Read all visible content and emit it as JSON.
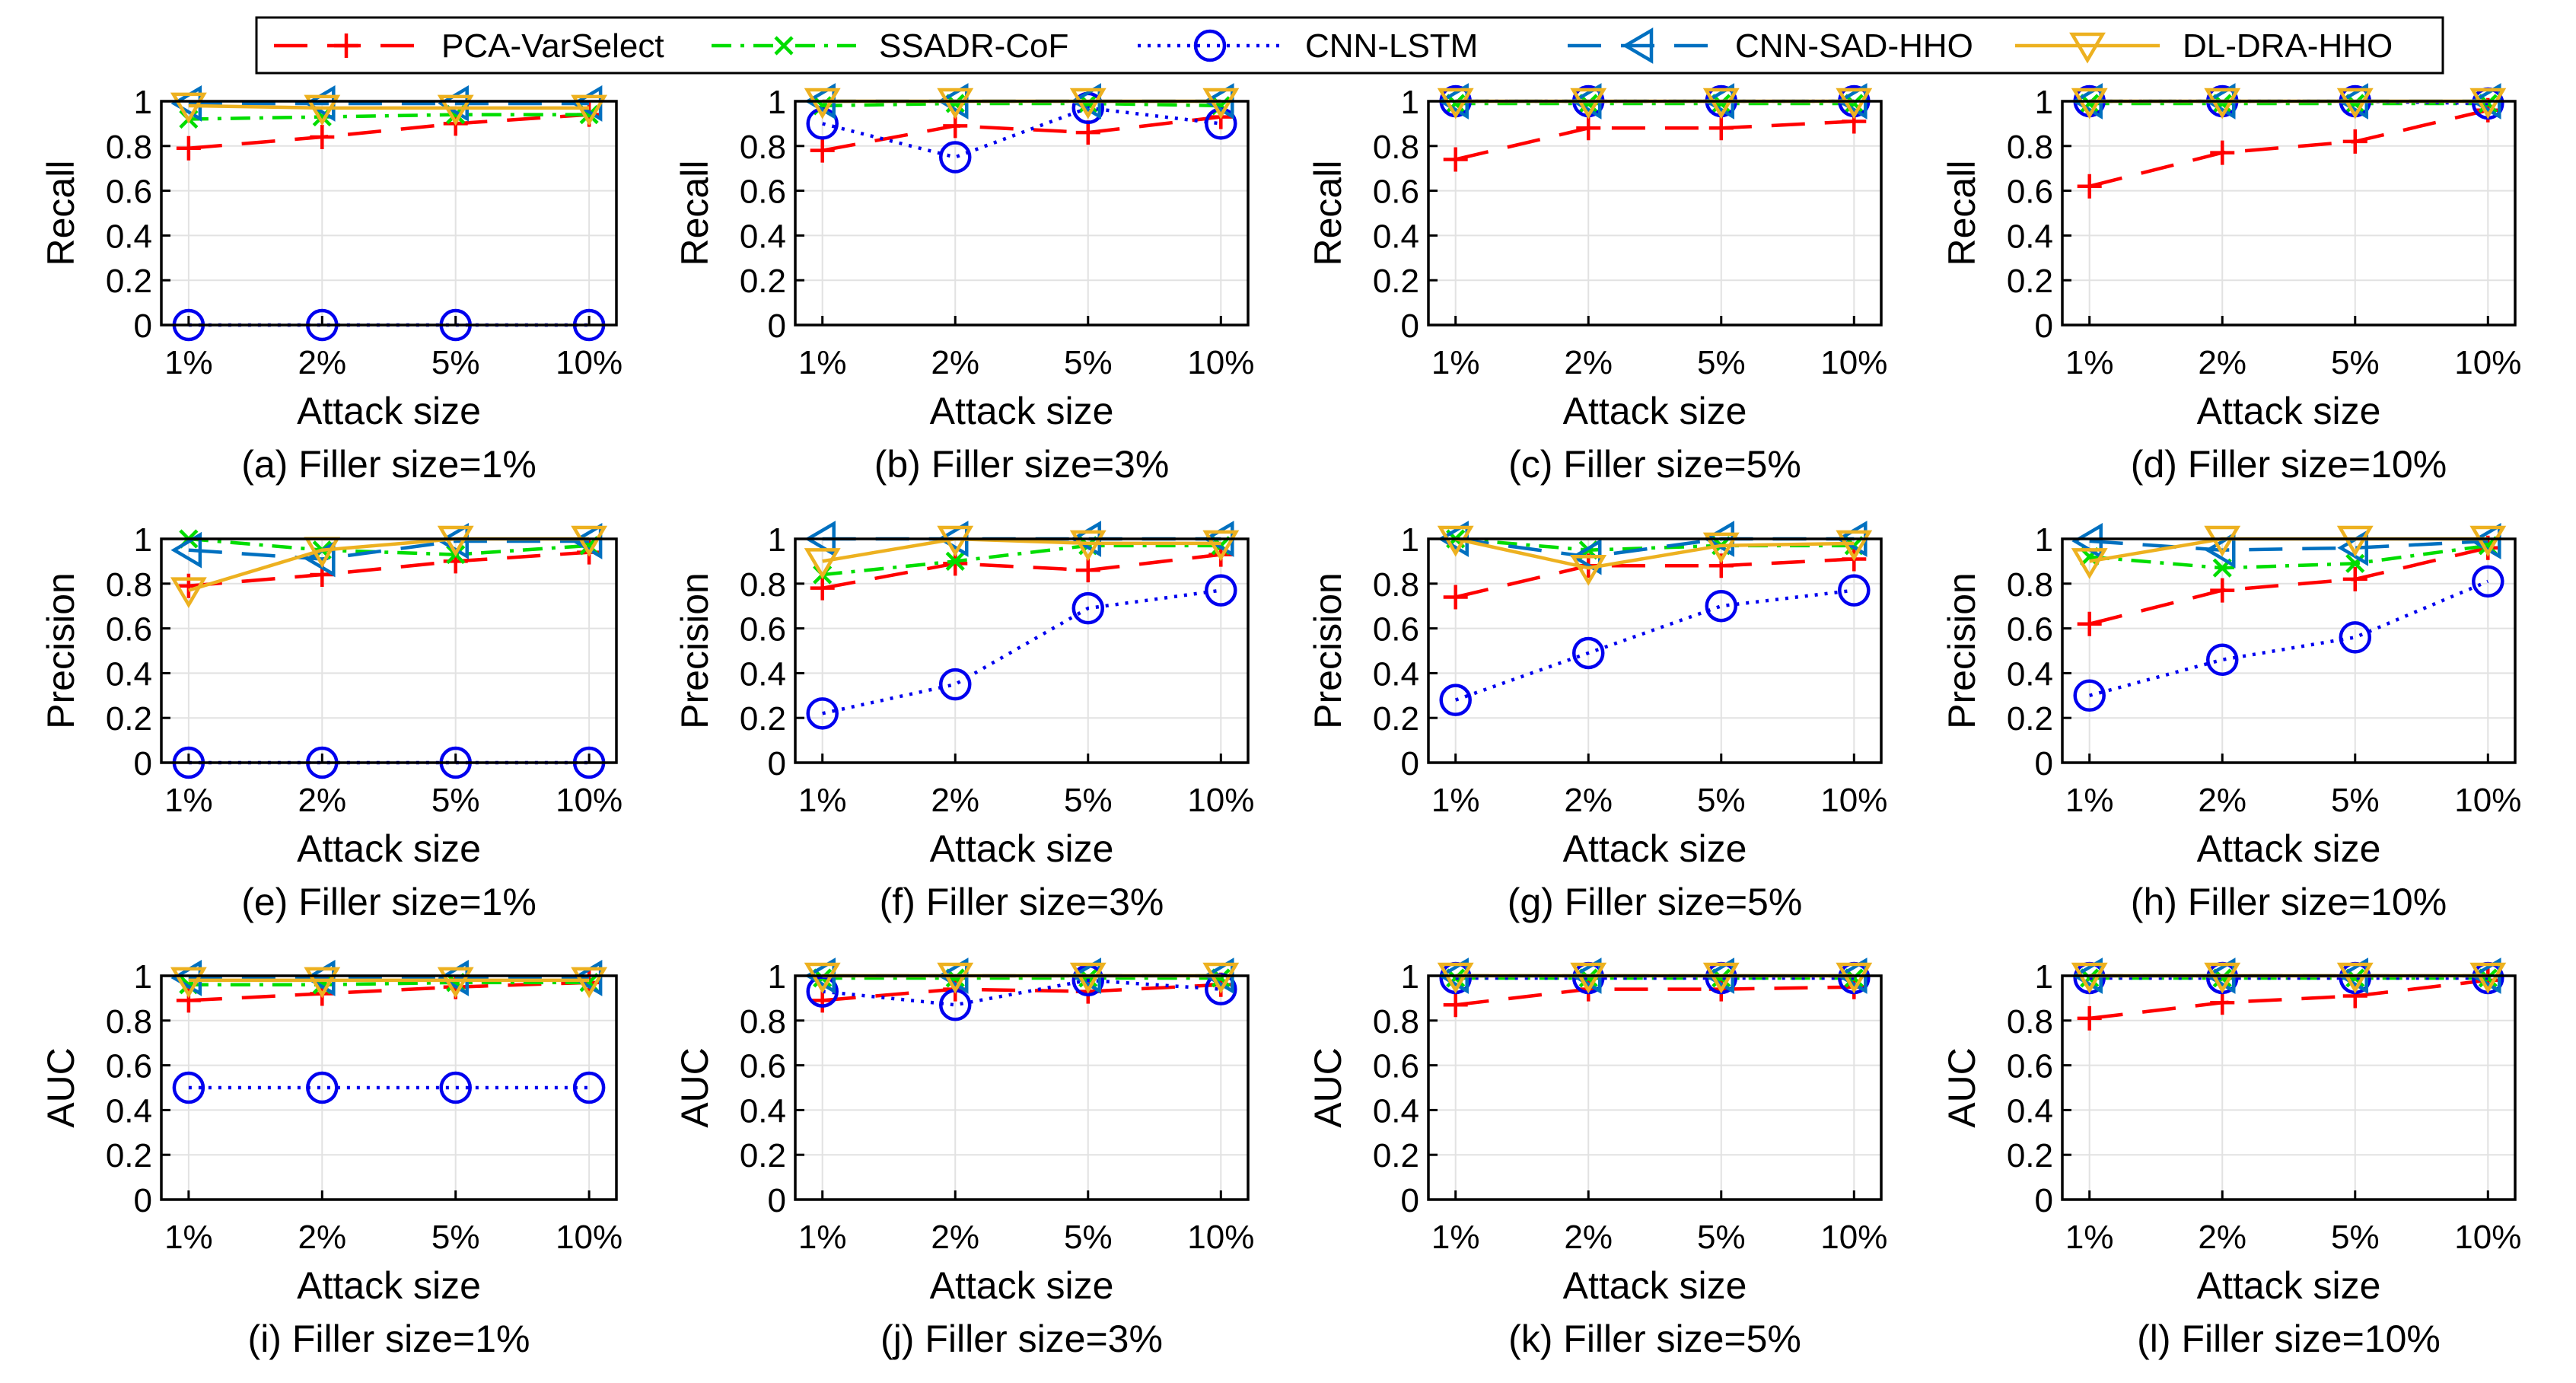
{
  "figure": {
    "legend": [
      "PCA-VarSelect",
      "SSADR-CoF",
      "CNN-LSTM",
      "CNN-SAD-HHO",
      "DL-DRA-HHO"
    ]
  },
  "series_styles": [
    {
      "name": "PCA-VarSelect",
      "color": "#ff0000",
      "marker": "plus",
      "dash": "44,26"
    },
    {
      "name": "SSADR-CoF",
      "color": "#00dd00",
      "marker": "x",
      "dash": "26,12,5,12"
    },
    {
      "name": "CNN-LSTM",
      "color": "#0000ee",
      "marker": "circle",
      "dash": "4,9"
    },
    {
      "name": "CNN-SAD-HHO",
      "color": "#0070c0",
      "marker": "triangle-left",
      "dash": "44,26"
    },
    {
      "name": "DL-DRA-HHO",
      "color": "#edb120",
      "marker": "triangle-down",
      "dash": ""
    }
  ],
  "chart_data": [
    {
      "type": "line",
      "panel": "(a)",
      "caption": "(a) Filler size=1%",
      "ylabel": "Recall",
      "xlabel": "Attack size",
      "categories": [
        "1%",
        "2%",
        "5%",
        "10%"
      ],
      "ylim": [
        0,
        1
      ],
      "yticks": [
        "0",
        "0.2",
        "0.4",
        "0.6",
        "0.8",
        "1"
      ],
      "series": [
        {
          "name": "PCA-VarSelect",
          "values": [
            0.79,
            0.84,
            0.9,
            0.94
          ]
        },
        {
          "name": "SSADR-CoF",
          "values": [
            0.92,
            0.93,
            0.94,
            0.94
          ]
        },
        {
          "name": "CNN-LSTM",
          "values": [
            0.0,
            0.0,
            0.0,
            0.0
          ]
        },
        {
          "name": "CNN-SAD-HHO",
          "values": [
            0.99,
            0.99,
            0.99,
            0.99
          ]
        },
        {
          "name": "DL-DRA-HHO",
          "values": [
            0.98,
            0.97,
            0.97,
            0.97
          ]
        }
      ]
    },
    {
      "type": "line",
      "panel": "(b)",
      "caption": "(b) Filler size=3%",
      "ylabel": "Recall",
      "xlabel": "Attack size",
      "categories": [
        "1%",
        "2%",
        "5%",
        "10%"
      ],
      "ylim": [
        0,
        1
      ],
      "yticks": [
        "0",
        "0.2",
        "0.4",
        "0.6",
        "0.8",
        "1"
      ],
      "series": [
        {
          "name": "PCA-VarSelect",
          "values": [
            0.78,
            0.89,
            0.86,
            0.93
          ]
        },
        {
          "name": "SSADR-CoF",
          "values": [
            0.98,
            0.99,
            0.99,
            0.98
          ]
        },
        {
          "name": "CNN-LSTM",
          "values": [
            0.9,
            0.75,
            0.97,
            0.9
          ]
        },
        {
          "name": "CNN-SAD-HHO",
          "values": [
            1.0,
            1.0,
            1.0,
            1.0
          ]
        },
        {
          "name": "DL-DRA-HHO",
          "values": [
            1.0,
            1.0,
            1.0,
            1.0
          ]
        }
      ]
    },
    {
      "type": "line",
      "panel": "(c)",
      "caption": "(c) Filler size=5%",
      "ylabel": "Recall",
      "xlabel": "Attack size",
      "categories": [
        "1%",
        "2%",
        "5%",
        "10%"
      ],
      "ylim": [
        0,
        1
      ],
      "yticks": [
        "0",
        "0.2",
        "0.4",
        "0.6",
        "0.8",
        "1"
      ],
      "series": [
        {
          "name": "PCA-VarSelect",
          "values": [
            0.74,
            0.88,
            0.88,
            0.91
          ]
        },
        {
          "name": "SSADR-CoF",
          "values": [
            0.99,
            0.99,
            0.99,
            0.99
          ]
        },
        {
          "name": "CNN-LSTM",
          "values": [
            1.0,
            1.0,
            1.0,
            1.0
          ]
        },
        {
          "name": "CNN-SAD-HHO",
          "values": [
            1.0,
            1.0,
            1.0,
            1.0
          ]
        },
        {
          "name": "DL-DRA-HHO",
          "values": [
            1.0,
            1.0,
            1.0,
            1.0
          ]
        }
      ]
    },
    {
      "type": "line",
      "panel": "(d)",
      "caption": "(d) Filler size=10%",
      "ylabel": "Recall",
      "xlabel": "Attack size",
      "categories": [
        "1%",
        "2%",
        "5%",
        "10%"
      ],
      "ylim": [
        0,
        1
      ],
      "yticks": [
        "0",
        "0.2",
        "0.4",
        "0.6",
        "0.8",
        "1"
      ],
      "series": [
        {
          "name": "PCA-VarSelect",
          "values": [
            0.62,
            0.77,
            0.82,
            0.96
          ]
        },
        {
          "name": "SSADR-CoF",
          "values": [
            0.99,
            0.99,
            0.99,
            0.99
          ]
        },
        {
          "name": "CNN-LSTM",
          "values": [
            1.0,
            1.0,
            1.0,
            0.99
          ]
        },
        {
          "name": "CNN-SAD-HHO",
          "values": [
            1.0,
            1.0,
            1.0,
            1.0
          ]
        },
        {
          "name": "DL-DRA-HHO",
          "values": [
            1.0,
            1.0,
            1.0,
            1.0
          ]
        }
      ]
    },
    {
      "type": "line",
      "panel": "(e)",
      "caption": "(e) Filler size=1%",
      "ylabel": "Precision",
      "xlabel": "Attack size",
      "categories": [
        "1%",
        "2%",
        "5%",
        "10%"
      ],
      "ylim": [
        0,
        1
      ],
      "yticks": [
        "0",
        "0.2",
        "0.4",
        "0.6",
        "0.8",
        "1"
      ],
      "series": [
        {
          "name": "PCA-VarSelect",
          "values": [
            0.79,
            0.84,
            0.9,
            0.94
          ]
        },
        {
          "name": "SSADR-CoF",
          "values": [
            1.0,
            0.95,
            0.93,
            0.97
          ]
        },
        {
          "name": "CNN-LSTM",
          "values": [
            0.0,
            0.0,
            0.0,
            0.0
          ]
        },
        {
          "name": "CNN-SAD-HHO",
          "values": [
            0.95,
            0.91,
            0.99,
            0.99
          ]
        },
        {
          "name": "DL-DRA-HHO",
          "values": [
            0.77,
            0.95,
            1.0,
            1.0
          ]
        }
      ]
    },
    {
      "type": "line",
      "panel": "(f)",
      "caption": "(f) Filler size=3%",
      "ylabel": "Precision",
      "xlabel": "Attack size",
      "categories": [
        "1%",
        "2%",
        "5%",
        "10%"
      ],
      "ylim": [
        0,
        1
      ],
      "yticks": [
        "0",
        "0.2",
        "0.4",
        "0.6",
        "0.8",
        "1"
      ],
      "series": [
        {
          "name": "PCA-VarSelect",
          "values": [
            0.78,
            0.89,
            0.86,
            0.93
          ]
        },
        {
          "name": "SSADR-CoF",
          "values": [
            0.84,
            0.9,
            0.97,
            0.97
          ]
        },
        {
          "name": "CNN-LSTM",
          "values": [
            0.22,
            0.35,
            0.69,
            0.77
          ]
        },
        {
          "name": "CNN-SAD-HHO",
          "values": [
            1.0,
            1.0,
            1.0,
            1.0
          ]
        },
        {
          "name": "DL-DRA-HHO",
          "values": [
            0.9,
            1.0,
            0.98,
            0.98
          ]
        }
      ]
    },
    {
      "type": "line",
      "panel": "(g)",
      "caption": "(g) Filler size=5%",
      "ylabel": "Precision",
      "xlabel": "Attack size",
      "categories": [
        "1%",
        "2%",
        "5%",
        "10%"
      ],
      "ylim": [
        0,
        1
      ],
      "yticks": [
        "0",
        "0.2",
        "0.4",
        "0.6",
        "0.8",
        "1"
      ],
      "series": [
        {
          "name": "PCA-VarSelect",
          "values": [
            0.74,
            0.88,
            0.88,
            0.91
          ]
        },
        {
          "name": "SSADR-CoF",
          "values": [
            1.0,
            0.95,
            0.97,
            0.97
          ]
        },
        {
          "name": "CNN-LSTM",
          "values": [
            0.28,
            0.49,
            0.7,
            0.77
          ]
        },
        {
          "name": "CNN-SAD-HHO",
          "values": [
            1.0,
            0.92,
            1.0,
            1.0
          ]
        },
        {
          "name": "DL-DRA-HHO",
          "values": [
            1.0,
            0.87,
            0.97,
            0.98
          ]
        }
      ]
    },
    {
      "type": "line",
      "panel": "(h)",
      "caption": "(h) Filler size=10%",
      "ylabel": "Precision",
      "xlabel": "Attack size",
      "categories": [
        "1%",
        "2%",
        "5%",
        "10%"
      ],
      "ylim": [
        0,
        1
      ],
      "yticks": [
        "0",
        "0.2",
        "0.4",
        "0.6",
        "0.8",
        "1"
      ],
      "series": [
        {
          "name": "PCA-VarSelect",
          "values": [
            0.62,
            0.77,
            0.82,
            0.96
          ]
        },
        {
          "name": "SSADR-CoF",
          "values": [
            0.92,
            0.87,
            0.89,
            0.97
          ]
        },
        {
          "name": "CNN-LSTM",
          "values": [
            0.3,
            0.46,
            0.56,
            0.81
          ]
        },
        {
          "name": "CNN-SAD-HHO",
          "values": [
            0.99,
            0.95,
            0.96,
            0.99
          ]
        },
        {
          "name": "DL-DRA-HHO",
          "values": [
            0.9,
            1.0,
            1.0,
            1.0
          ]
        }
      ]
    },
    {
      "type": "line",
      "panel": "(i)",
      "caption": "(i) Filler size=1%",
      "ylabel": "AUC",
      "xlabel": "Attack size",
      "categories": [
        "1%",
        "2%",
        "5%",
        "10%"
      ],
      "ylim": [
        0,
        1
      ],
      "yticks": [
        "0",
        "0.2",
        "0.4",
        "0.6",
        "0.8",
        "1"
      ],
      "series": [
        {
          "name": "PCA-VarSelect",
          "values": [
            0.89,
            0.92,
            0.95,
            0.97
          ]
        },
        {
          "name": "SSADR-CoF",
          "values": [
            0.96,
            0.96,
            0.97,
            0.97
          ]
        },
        {
          "name": "CNN-LSTM",
          "values": [
            0.5,
            0.5,
            0.5,
            0.5
          ]
        },
        {
          "name": "CNN-SAD-HHO",
          "values": [
            0.99,
            0.99,
            0.99,
            0.99
          ]
        },
        {
          "name": "DL-DRA-HHO",
          "values": [
            0.98,
            0.98,
            0.98,
            0.98
          ]
        }
      ]
    },
    {
      "type": "line",
      "panel": "(j)",
      "caption": "(j) Filler size=3%",
      "ylabel": "AUC",
      "xlabel": "Attack size",
      "categories": [
        "1%",
        "2%",
        "5%",
        "10%"
      ],
      "ylim": [
        0,
        1
      ],
      "yticks": [
        "0",
        "0.2",
        "0.4",
        "0.6",
        "0.8",
        "1"
      ],
      "series": [
        {
          "name": "PCA-VarSelect",
          "values": [
            0.89,
            0.94,
            0.93,
            0.96
          ]
        },
        {
          "name": "SSADR-CoF",
          "values": [
            0.99,
            0.99,
            0.99,
            0.99
          ]
        },
        {
          "name": "CNN-LSTM",
          "values": [
            0.93,
            0.87,
            0.98,
            0.94
          ]
        },
        {
          "name": "CNN-SAD-HHO",
          "values": [
            1.0,
            1.0,
            1.0,
            1.0
          ]
        },
        {
          "name": "DL-DRA-HHO",
          "values": [
            1.0,
            1.0,
            1.0,
            1.0
          ]
        }
      ]
    },
    {
      "type": "line",
      "panel": "(k)",
      "caption": "(k) Filler size=5%",
      "ylabel": "AUC",
      "xlabel": "Attack size",
      "categories": [
        "1%",
        "2%",
        "5%",
        "10%"
      ],
      "ylim": [
        0,
        1
      ],
      "yticks": [
        "0",
        "0.2",
        "0.4",
        "0.6",
        "0.8",
        "1"
      ],
      "series": [
        {
          "name": "PCA-VarSelect",
          "values": [
            0.87,
            0.94,
            0.94,
            0.95
          ]
        },
        {
          "name": "SSADR-CoF",
          "values": [
            0.99,
            0.99,
            0.99,
            0.99
          ]
        },
        {
          "name": "CNN-LSTM",
          "values": [
            0.99,
            0.99,
            0.99,
            0.99
          ]
        },
        {
          "name": "CNN-SAD-HHO",
          "values": [
            1.0,
            1.0,
            1.0,
            1.0
          ]
        },
        {
          "name": "DL-DRA-HHO",
          "values": [
            1.0,
            1.0,
            1.0,
            1.0
          ]
        }
      ]
    },
    {
      "type": "line",
      "panel": "(l)",
      "caption": "(l) Filler size=10%",
      "ylabel": "AUC",
      "xlabel": "Attack size",
      "categories": [
        "1%",
        "2%",
        "5%",
        "10%"
      ],
      "ylim": [
        0,
        1
      ],
      "yticks": [
        "0",
        "0.2",
        "0.4",
        "0.6",
        "0.8",
        "1"
      ],
      "series": [
        {
          "name": "PCA-VarSelect",
          "values": [
            0.81,
            0.88,
            0.91,
            0.98
          ]
        },
        {
          "name": "SSADR-CoF",
          "values": [
            0.99,
            0.99,
            0.99,
            0.99
          ]
        },
        {
          "name": "CNN-LSTM",
          "values": [
            0.99,
            0.99,
            0.99,
            0.99
          ]
        },
        {
          "name": "CNN-SAD-HHO",
          "values": [
            1.0,
            1.0,
            1.0,
            1.0
          ]
        },
        {
          "name": "DL-DRA-HHO",
          "values": [
            1.0,
            1.0,
            1.0,
            1.0
          ]
        }
      ]
    }
  ]
}
